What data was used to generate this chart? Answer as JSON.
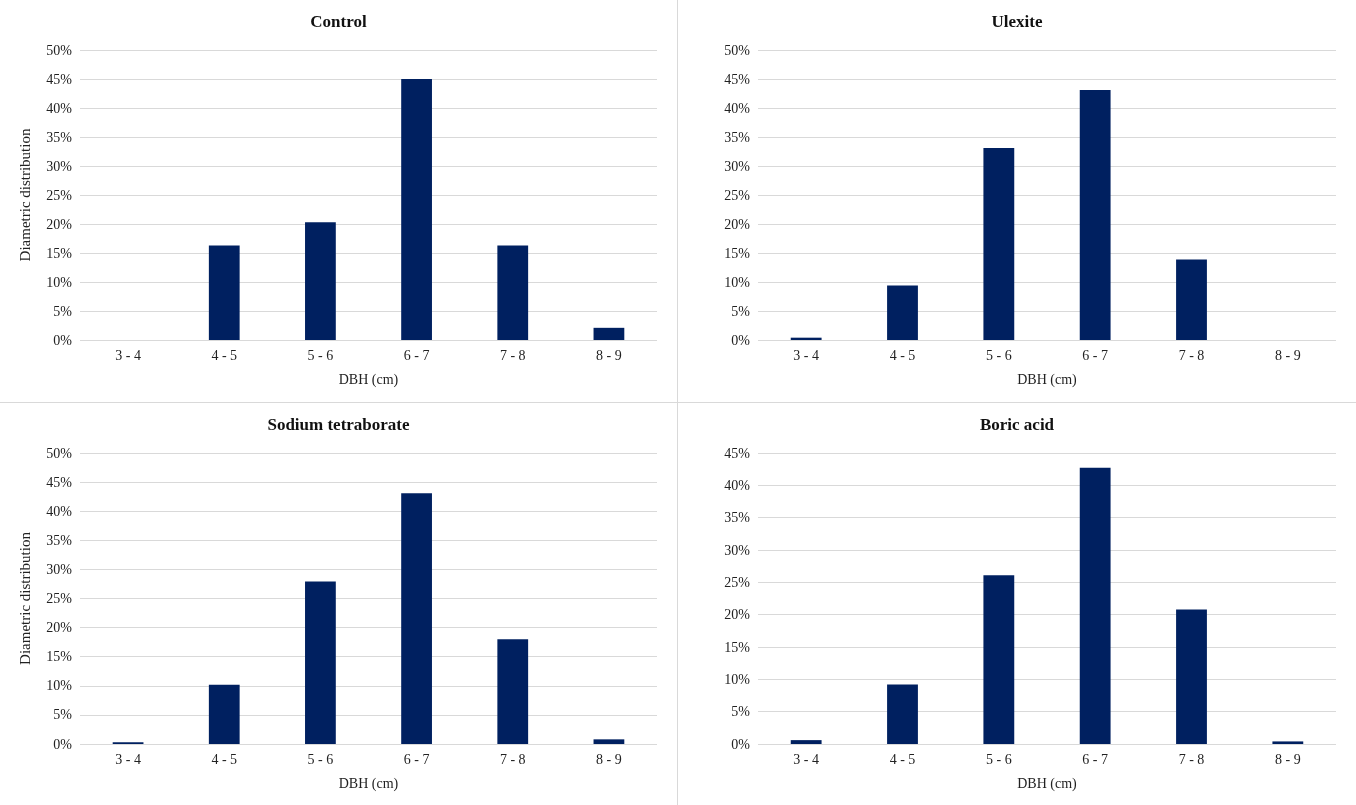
{
  "chart_data": [
    {
      "type": "bar",
      "title": "Control",
      "xlabel": "DBH (cm)",
      "ylabel": "Diametric distribution",
      "categories": [
        "3 - 4",
        "4 - 5",
        "5 - 6",
        "6 - 7",
        "7 - 8",
        "8 - 9"
      ],
      "values": [
        0,
        16.3,
        20.3,
        45,
        16.3,
        2.1
      ],
      "color": "#002060",
      "ylim": [
        0,
        50
      ],
      "yticks": [
        {
          "value": 0,
          "label": "0%"
        },
        {
          "value": 5,
          "label": "5%"
        },
        {
          "value": 10,
          "label": "10%"
        },
        {
          "value": 15,
          "label": "15%"
        },
        {
          "value": 20,
          "label": "20%"
        },
        {
          "value": 25,
          "label": "25%"
        },
        {
          "value": 30,
          "label": "30%"
        },
        {
          "value": 35,
          "label": "35%"
        },
        {
          "value": 40,
          "label": "40%"
        },
        {
          "value": 45,
          "label": "45%"
        },
        {
          "value": 50,
          "label": "50%"
        }
      ],
      "grid": "y"
    },
    {
      "type": "bar",
      "title": "Ulexite",
      "xlabel": "DBH (cm)",
      "categories": [
        "3 - 4",
        "4 - 5",
        "5 - 6",
        "6 - 7",
        "7 - 8",
        "8 - 9"
      ],
      "values": [
        0.4,
        9.4,
        33.1,
        43.1,
        13.9,
        0
      ],
      "color": "#002060",
      "ylim": [
        0,
        50
      ],
      "yticks": [
        {
          "value": 0,
          "label": "0%"
        },
        {
          "value": 5,
          "label": "5%"
        },
        {
          "value": 10,
          "label": "10%"
        },
        {
          "value": 15,
          "label": "15%"
        },
        {
          "value": 20,
          "label": "20%"
        },
        {
          "value": 25,
          "label": "25%"
        },
        {
          "value": 30,
          "label": "30%"
        },
        {
          "value": 35,
          "label": "35%"
        },
        {
          "value": 40,
          "label": "40%"
        },
        {
          "value": 45,
          "label": "45%"
        },
        {
          "value": 50,
          "label": "50%"
        }
      ],
      "grid": "y"
    },
    {
      "type": "bar",
      "title": "Sodium tetraborate",
      "xlabel": "DBH (cm)",
      "ylabel": "Diametric distribution",
      "categories": [
        "3 - 4",
        "4 - 5",
        "5 - 6",
        "6 - 7",
        "7 - 8",
        "8 - 9"
      ],
      "values": [
        0.3,
        10.2,
        27.9,
        43.1,
        18.0,
        0.8
      ],
      "color": "#002060",
      "ylim": [
        0,
        50
      ],
      "yticks": [
        {
          "value": 0,
          "label": "0%"
        },
        {
          "value": 5,
          "label": "5%"
        },
        {
          "value": 10,
          "label": "10%"
        },
        {
          "value": 15,
          "label": "15%"
        },
        {
          "value": 20,
          "label": "20%"
        },
        {
          "value": 25,
          "label": "25%"
        },
        {
          "value": 30,
          "label": "30%"
        },
        {
          "value": 35,
          "label": "35%"
        },
        {
          "value": 40,
          "label": "40%"
        },
        {
          "value": 45,
          "label": "45%"
        },
        {
          "value": 50,
          "label": "50%"
        }
      ],
      "grid": "y"
    },
    {
      "type": "bar",
      "title": "Boric acid",
      "xlabel": "DBH (cm)",
      "categories": [
        "3 - 4",
        "4 - 5",
        "5 - 6",
        "6 - 7",
        "7 - 8",
        "8 - 9"
      ],
      "values": [
        0.6,
        9.2,
        26.1,
        42.7,
        20.8,
        0.4
      ],
      "color": "#002060",
      "ylim": [
        0,
        45
      ],
      "yticks": [
        {
          "value": 0,
          "label": "0%"
        },
        {
          "value": 5,
          "label": "5%"
        },
        {
          "value": 10,
          "label": "10%"
        },
        {
          "value": 15,
          "label": "15%"
        },
        {
          "value": 20,
          "label": "20%"
        },
        {
          "value": 25,
          "label": "25%"
        },
        {
          "value": 30,
          "label": "30%"
        },
        {
          "value": 35,
          "label": "35%"
        },
        {
          "value": 40,
          "label": "40%"
        },
        {
          "value": 45,
          "label": "45%"
        }
      ],
      "grid": "y"
    }
  ]
}
